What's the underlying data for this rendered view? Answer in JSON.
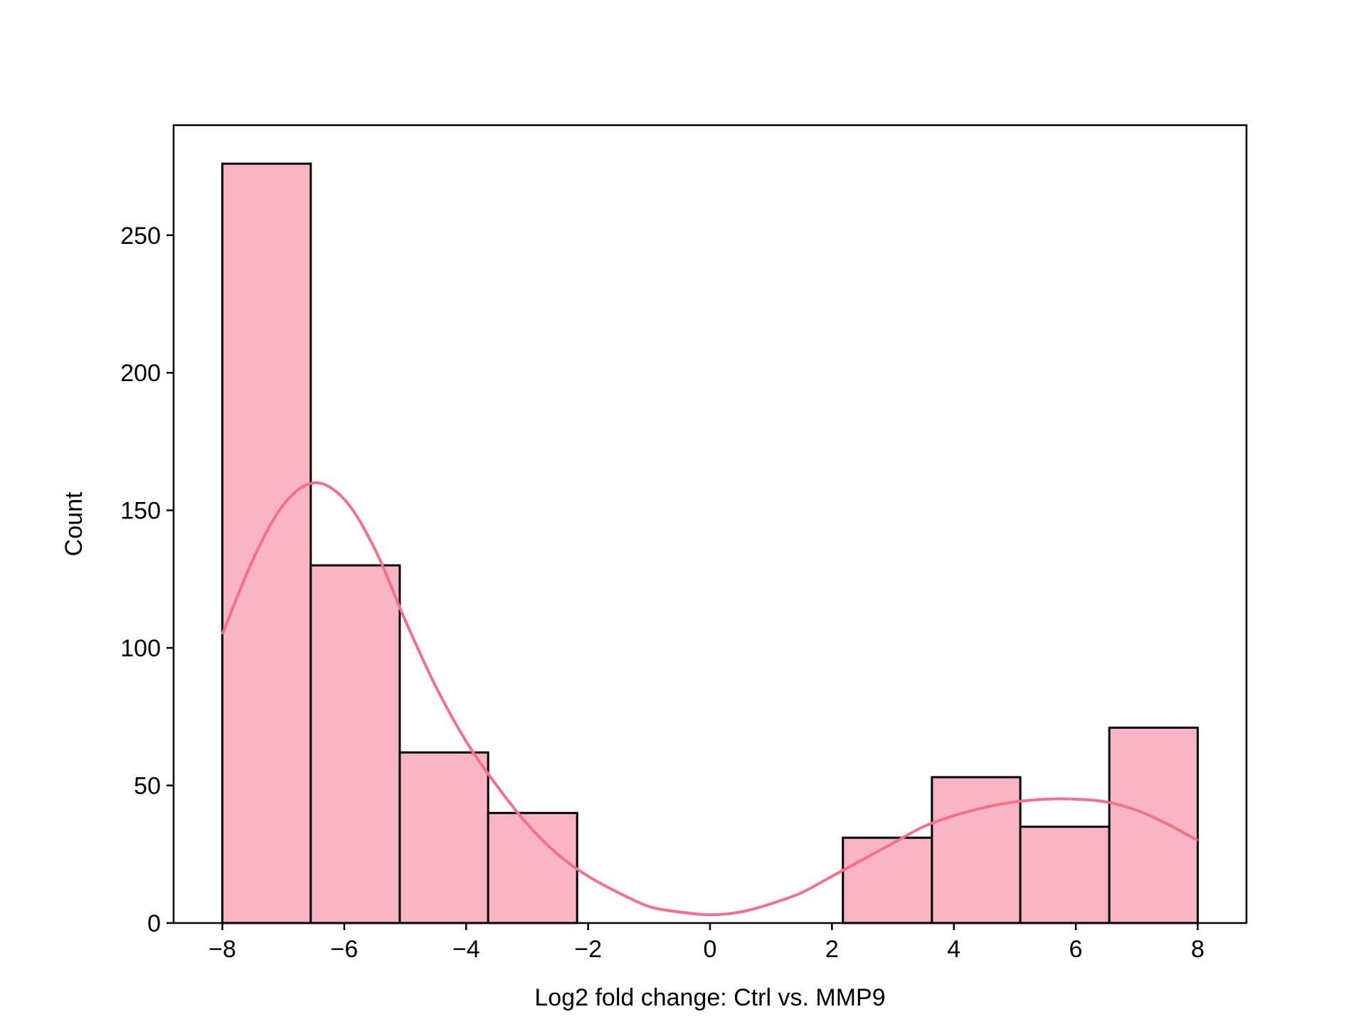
{
  "chart_data": {
    "type": "bar",
    "subtype": "histogram_with_kde",
    "xlabel": "Log2 fold change: Ctrl vs. MMP9",
    "ylabel": "Count",
    "xlim": [
      -8.8,
      8.8
    ],
    "ylim": [
      0,
      290
    ],
    "x_ticks": [
      -8,
      -6,
      -4,
      -2,
      0,
      2,
      4,
      6,
      8
    ],
    "x_tick_labels": [
      "−8",
      "−6",
      "−4",
      "−2",
      "0",
      "2",
      "4",
      "6",
      "8"
    ],
    "y_ticks": [
      0,
      50,
      100,
      150,
      200,
      250
    ],
    "y_tick_labels": [
      "0",
      "50",
      "100",
      "150",
      "200",
      "250"
    ],
    "bins": [
      {
        "x0": -8.0,
        "x1": -6.55,
        "count": 276
      },
      {
        "x0": -6.55,
        "x1": -5.09,
        "count": 130
      },
      {
        "x0": -5.09,
        "x1": -3.64,
        "count": 62
      },
      {
        "x0": -3.64,
        "x1": -2.18,
        "count": 40
      },
      {
        "x0": -2.18,
        "x1": -0.73,
        "count": 0
      },
      {
        "x0": -0.73,
        "x1": 0.73,
        "count": 0
      },
      {
        "x0": 0.73,
        "x1": 2.18,
        "count": 0
      },
      {
        "x0": 2.18,
        "x1": 3.64,
        "count": 31
      },
      {
        "x0": 3.64,
        "x1": 5.09,
        "count": 53
      },
      {
        "x0": 5.09,
        "x1": 6.55,
        "count": 35
      },
      {
        "x0": 6.55,
        "x1": 8.0,
        "count": 71
      }
    ],
    "kde": {
      "x": [
        -8.0,
        -7.5,
        -7.0,
        -6.5,
        -6.0,
        -5.5,
        -5.0,
        -4.5,
        -4.0,
        -3.5,
        -3.0,
        -2.5,
        -2.0,
        -1.5,
        -1.0,
        -0.5,
        0.0,
        0.5,
        1.0,
        1.5,
        2.0,
        2.5,
        3.0,
        3.5,
        4.0,
        4.5,
        5.0,
        5.5,
        6.0,
        6.5,
        7.0,
        7.5,
        8.0
      ],
      "y": [
        105,
        132,
        152,
        160,
        154,
        136,
        110,
        86,
        66,
        50,
        36,
        25,
        17,
        11,
        6,
        4,
        3,
        4,
        7,
        11,
        17,
        23,
        29,
        35,
        39,
        42,
        44,
        45,
        45,
        44,
        41,
        36,
        30
      ]
    },
    "colors": {
      "bar_fill": "#f9b5c3",
      "bar_edge": "#000000",
      "kde_line": "#f37089"
    },
    "grid": false,
    "legend": "none"
  }
}
